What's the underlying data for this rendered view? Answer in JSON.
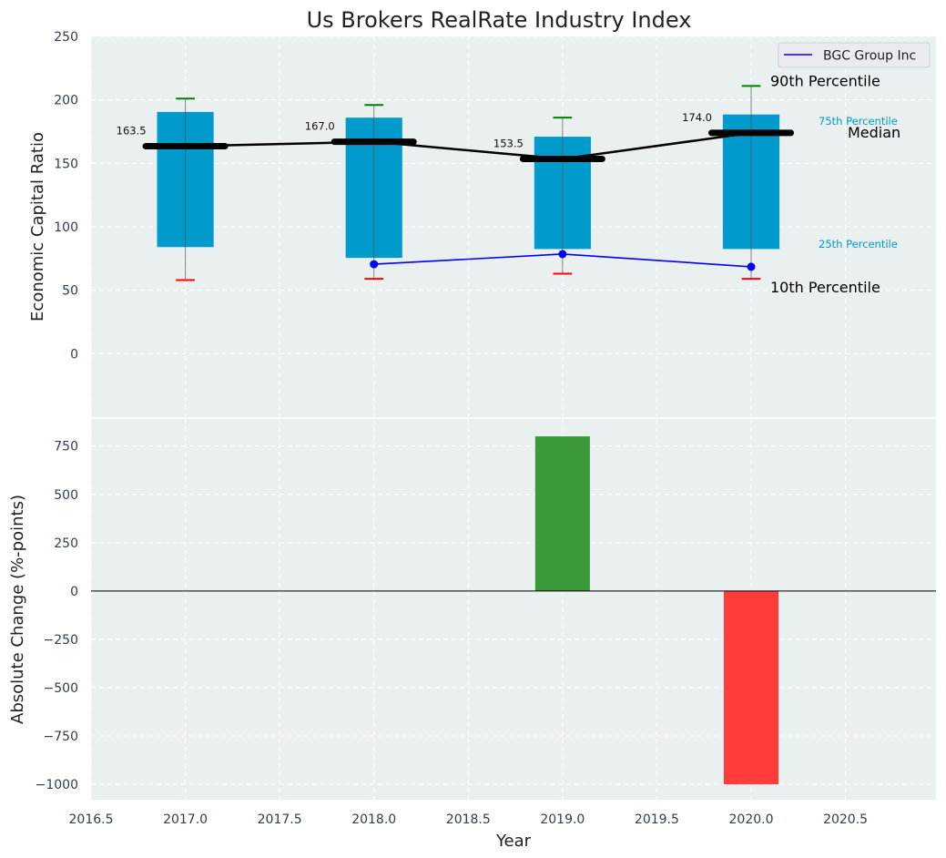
{
  "chart_data": [
    {
      "type": "box",
      "title": "Us Brokers RealRate Industry Index",
      "xlabel": "",
      "ylabel": "Economic Capital Ratio",
      "xlim": [
        2016.5,
        2020.98
      ],
      "ylim": [
        -50,
        250
      ],
      "yticks": [
        0,
        50,
        100,
        150,
        200,
        250
      ],
      "grid": true,
      "legend": {
        "position": "top-right",
        "entries": [
          "BGC Group Inc"
        ]
      },
      "categories": [
        2017,
        2018,
        2019,
        2020
      ],
      "percentiles": {
        "p90": [
          201,
          196,
          186,
          211
        ],
        "p75": [
          190.5,
          186,
          171,
          188.5
        ],
        "median": [
          163.5,
          167.0,
          153.5,
          174.0
        ],
        "p25": [
          84,
          75.5,
          82.5,
          82.5
        ],
        "p10": [
          58,
          59,
          63,
          59
        ]
      },
      "median_labels": [
        "163.5",
        "167.0",
        "153.5",
        "174.0"
      ],
      "series": [
        {
          "name": "BGC Group Inc",
          "x": [
            2018,
            2019,
            2020
          ],
          "values": [
            70.5,
            78.5,
            68.5
          ],
          "color": "#0000ff"
        }
      ],
      "annotations": {
        "p90": "90th Percentile",
        "p75": "75th Percentile",
        "median": "Median",
        "p25": "25th Percentile",
        "p10": "10th Percentile"
      },
      "colors": {
        "box": "#009acd",
        "p90": "#008000",
        "p10": "#ff0000",
        "median": "#000000",
        "axes_bg": "#eaeff0"
      }
    },
    {
      "type": "bar",
      "xlabel": "Year",
      "ylabel": "Absolute Change (%-points)",
      "xlim": [
        2016.5,
        2020.98
      ],
      "ylim": [
        -1080,
        890
      ],
      "xticks": [
        2016.5,
        2017.0,
        2017.5,
        2018.0,
        2018.5,
        2019.0,
        2019.5,
        2020.0,
        2020.5
      ],
      "xtick_labels": [
        "2016.5",
        "2017.0",
        "2017.5",
        "2018.0",
        "2018.5",
        "2019.0",
        "2019.5",
        "2020.0",
        "2020.5"
      ],
      "yticks": [
        -1000,
        -750,
        -500,
        -250,
        0,
        250,
        500,
        750
      ],
      "ytick_labels": [
        "−1000",
        "−750",
        "−500",
        "−250",
        "0",
        "250",
        "500",
        "750"
      ],
      "categories": [
        2019,
        2020
      ],
      "values": [
        800,
        -1000
      ],
      "colors": {
        "positive": "#3a9a3a",
        "negative": "#ff3b3b"
      }
    }
  ]
}
